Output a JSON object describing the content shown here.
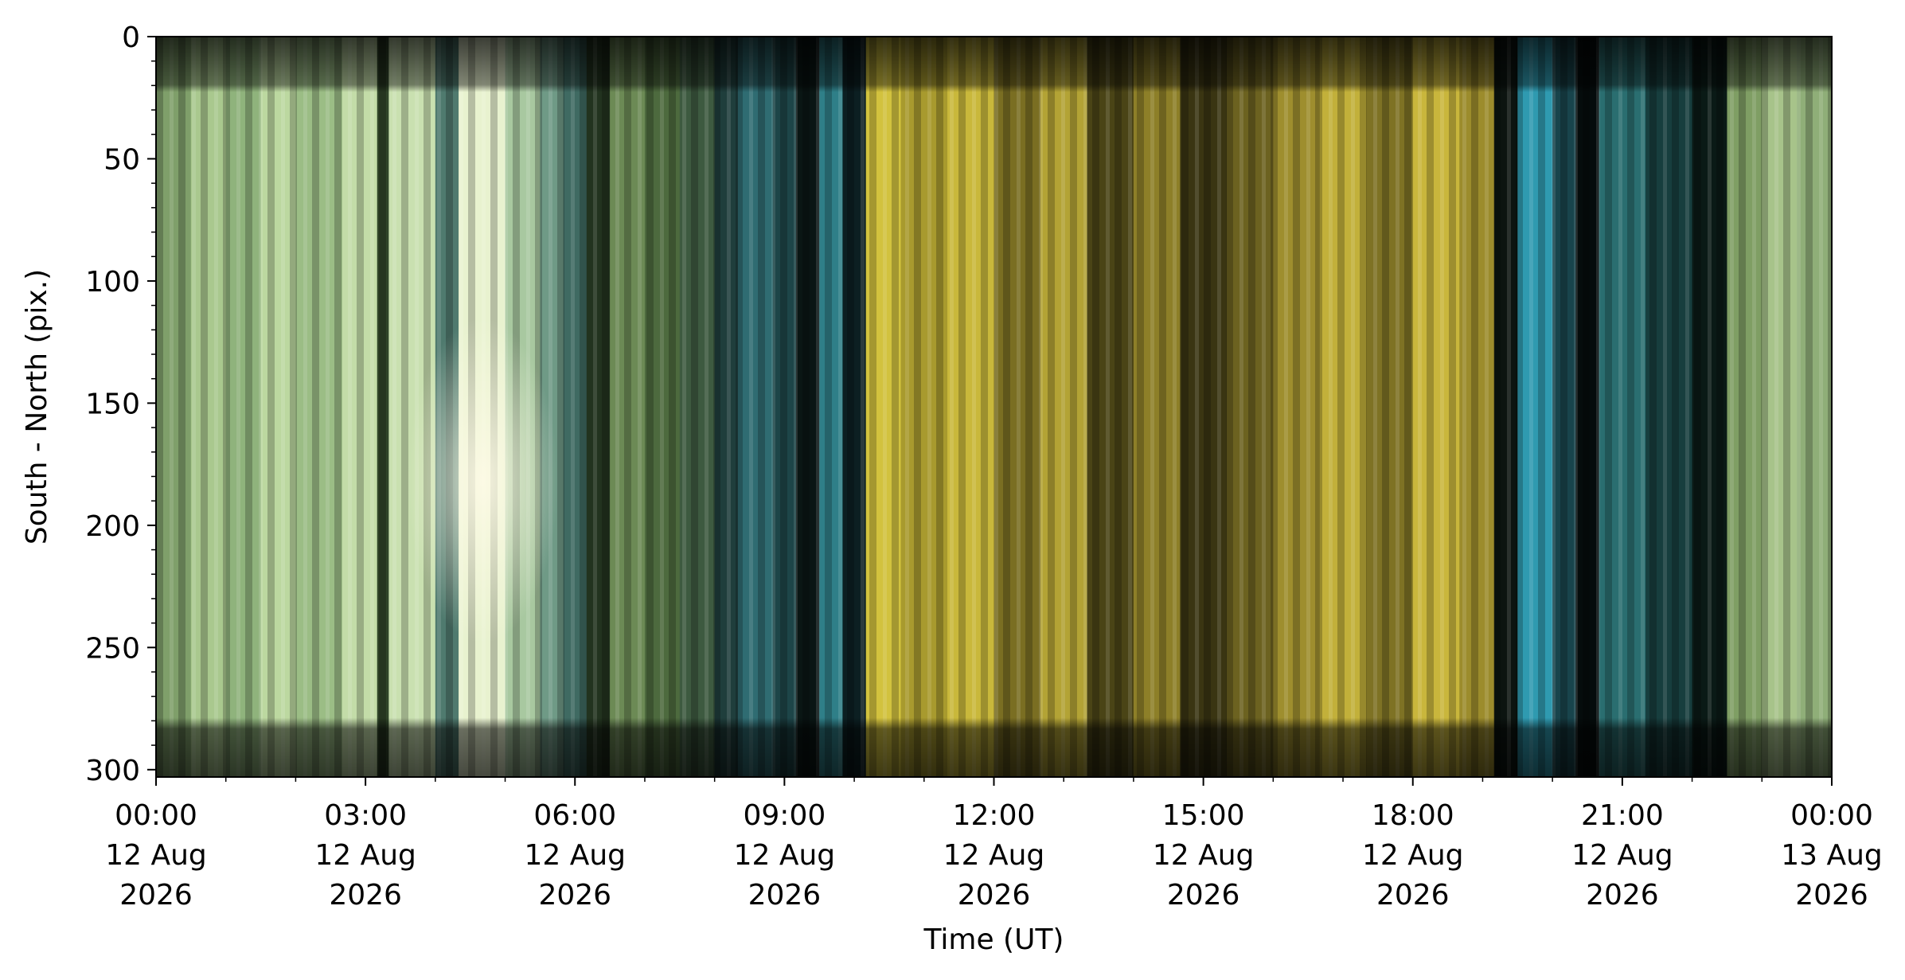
{
  "chart_data": {
    "type": "keogram",
    "xlabel": "Time (UT)",
    "ylabel": "South - North (pix.)",
    "xlim": [
      "2026-08-12 00:00",
      "2026-08-13 00:00"
    ],
    "xticks": [
      {
        "value": "2026-08-12 00:00",
        "label": "00:00\n12 Aug\n2026"
      },
      {
        "value": "2026-08-12 03:00",
        "label": "03:00\n12 Aug\n2026"
      },
      {
        "value": "2026-08-12 06:00",
        "label": "06:00\n12 Aug\n2026"
      },
      {
        "value": "2026-08-12 09:00",
        "label": "09:00\n12 Aug\n2026"
      },
      {
        "value": "2026-08-12 12:00",
        "label": "12:00\n12 Aug\n2026"
      },
      {
        "value": "2026-08-12 15:00",
        "label": "15:00\n12 Aug\n2026"
      },
      {
        "value": "2026-08-12 18:00",
        "label": "18:00\n12 Aug\n2026"
      },
      {
        "value": "2026-08-12 21:00",
        "label": "21:00\n12 Aug\n2026"
      },
      {
        "value": "2026-08-13 00:00",
        "label": "00:00\n13 Aug\n2026"
      }
    ],
    "xminorticks": [
      "2026-08-12 01:00",
      "2026-08-12 02:00",
      "2026-08-12 04:00",
      "2026-08-12 05:00",
      "2026-08-12 07:00",
      "2026-08-12 08:00",
      "2026-08-12 10:00",
      "2026-08-12 11:00",
      "2026-08-12 13:00",
      "2026-08-12 14:00",
      "2026-08-12 16:00",
      "2026-08-12 17:00",
      "2026-08-12 19:00",
      "2026-08-12 20:00",
      "2026-08-12 22:00",
      "2026-08-12 23:00"
    ],
    "ylim": [
      303,
      0
    ],
    "yticks": [
      0,
      50,
      100,
      150,
      200,
      250,
      300
    ],
    "yminorticks": [
      10,
      20,
      30,
      40,
      60,
      70,
      80,
      90,
      110,
      120,
      130,
      140,
      160,
      170,
      180,
      190,
      210,
      220,
      230,
      240,
      260,
      270,
      280,
      290
    ],
    "x": [
      "2026-08-12 00:00",
      "2026-08-12 00:30",
      "2026-08-12 01:00",
      "2026-08-12 01:30",
      "2026-08-12 02:00",
      "2026-08-12 02:40",
      "2026-08-12 03:10",
      "2026-08-12 03:20",
      "2026-08-12 04:00",
      "2026-08-12 04:20",
      "2026-08-12 05:00",
      "2026-08-12 05:30",
      "2026-08-12 05:50",
      "2026-08-12 06:10",
      "2026-08-12 06:30",
      "2026-08-12 07:00",
      "2026-08-12 07:30",
      "2026-08-12 08:00",
      "2026-08-12 08:20",
      "2026-08-12 08:50",
      "2026-08-12 09:10",
      "2026-08-12 09:30",
      "2026-08-12 09:50",
      "2026-08-12 10:10",
      "2026-08-12 10:40",
      "2026-08-12 11:20",
      "2026-08-12 12:00",
      "2026-08-12 12:40",
      "2026-08-12 13:20",
      "2026-08-12 14:00",
      "2026-08-12 14:40",
      "2026-08-12 15:20",
      "2026-08-12 16:00",
      "2026-08-12 16:40",
      "2026-08-12 17:20",
      "2026-08-12 18:00",
      "2026-08-12 18:40",
      "2026-08-12 19:10",
      "2026-08-12 19:30",
      "2026-08-12 20:00",
      "2026-08-12 20:20",
      "2026-08-12 20:40",
      "2026-08-12 21:20",
      "2026-08-12 22:00",
      "2026-08-12 22:30",
      "2026-08-12 23:00",
      "2026-08-12 23:30"
    ],
    "colors": [
      "#7f9f6a",
      "#a9c88e",
      "#8fb37c",
      "#bcd8a0",
      "#9bbd85",
      "#c3dca8",
      "#2f4429",
      "#c9e0b0",
      "#4f7a6e",
      "#e8f2cf",
      "#a8c8a0",
      "#6f9a86",
      "#3f6a62",
      "#22331f",
      "#6c8a55",
      "#4d6a3e",
      "#3d5a40",
      "#1f3e3c",
      "#2f6c72",
      "#1d4548",
      "#0a1614",
      "#2f7f88",
      "#0c1f22",
      "#d2c23e",
      "#a89a2e",
      "#c9b83b",
      "#7a6e22",
      "#b3a335",
      "#4a4416",
      "#8d7f28",
      "#3a3512",
      "#6c6220",
      "#9e8e2e",
      "#c2b03a",
      "#7e7224",
      "#c9b63c",
      "#9c8c2c",
      "#0c1410",
      "#2f9ab0",
      "#18444c",
      "#050c0c",
      "#2a6e70",
      "#173e3e",
      "#0a1a16",
      "#7f9e64",
      "#a7c38a",
      "#8fae78"
    ]
  }
}
